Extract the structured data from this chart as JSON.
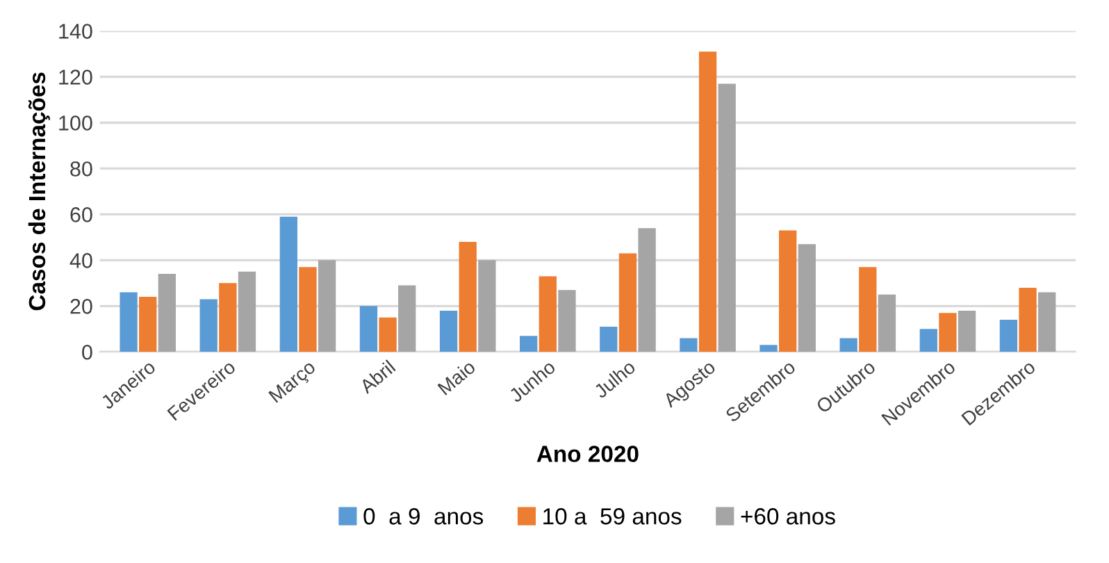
{
  "chart_data": {
    "type": "bar",
    "xlabel": "Ano 2020",
    "ylabel": "Casos de Internações",
    "categories": [
      "Janeiro",
      "Fevereiro",
      "Março",
      "Abril",
      "Maio",
      "Junho",
      "Julho",
      "Agosto",
      "Setembro",
      "Outubro",
      "Novembro",
      "Dezembro"
    ],
    "series": [
      {
        "name": "0  a 9  anos",
        "color": "#5b9bd5",
        "values": [
          26,
          23,
          59,
          20,
          18,
          7,
          11,
          6,
          3,
          6,
          10,
          14
        ]
      },
      {
        "name": "10 a  59 anos",
        "color": "#ed7d31",
        "values": [
          24,
          30,
          37,
          15,
          48,
          33,
          43,
          131,
          53,
          37,
          17,
          28
        ]
      },
      {
        "name": "+60 anos",
        "color": "#a5a5a5",
        "values": [
          34,
          35,
          40,
          29,
          40,
          27,
          54,
          117,
          47,
          25,
          18,
          26
        ]
      }
    ],
    "ylim": [
      0,
      140
    ],
    "yticks": [
      0,
      20,
      40,
      60,
      80,
      100,
      120,
      140
    ],
    "grid": "y",
    "legend": "bottom"
  }
}
